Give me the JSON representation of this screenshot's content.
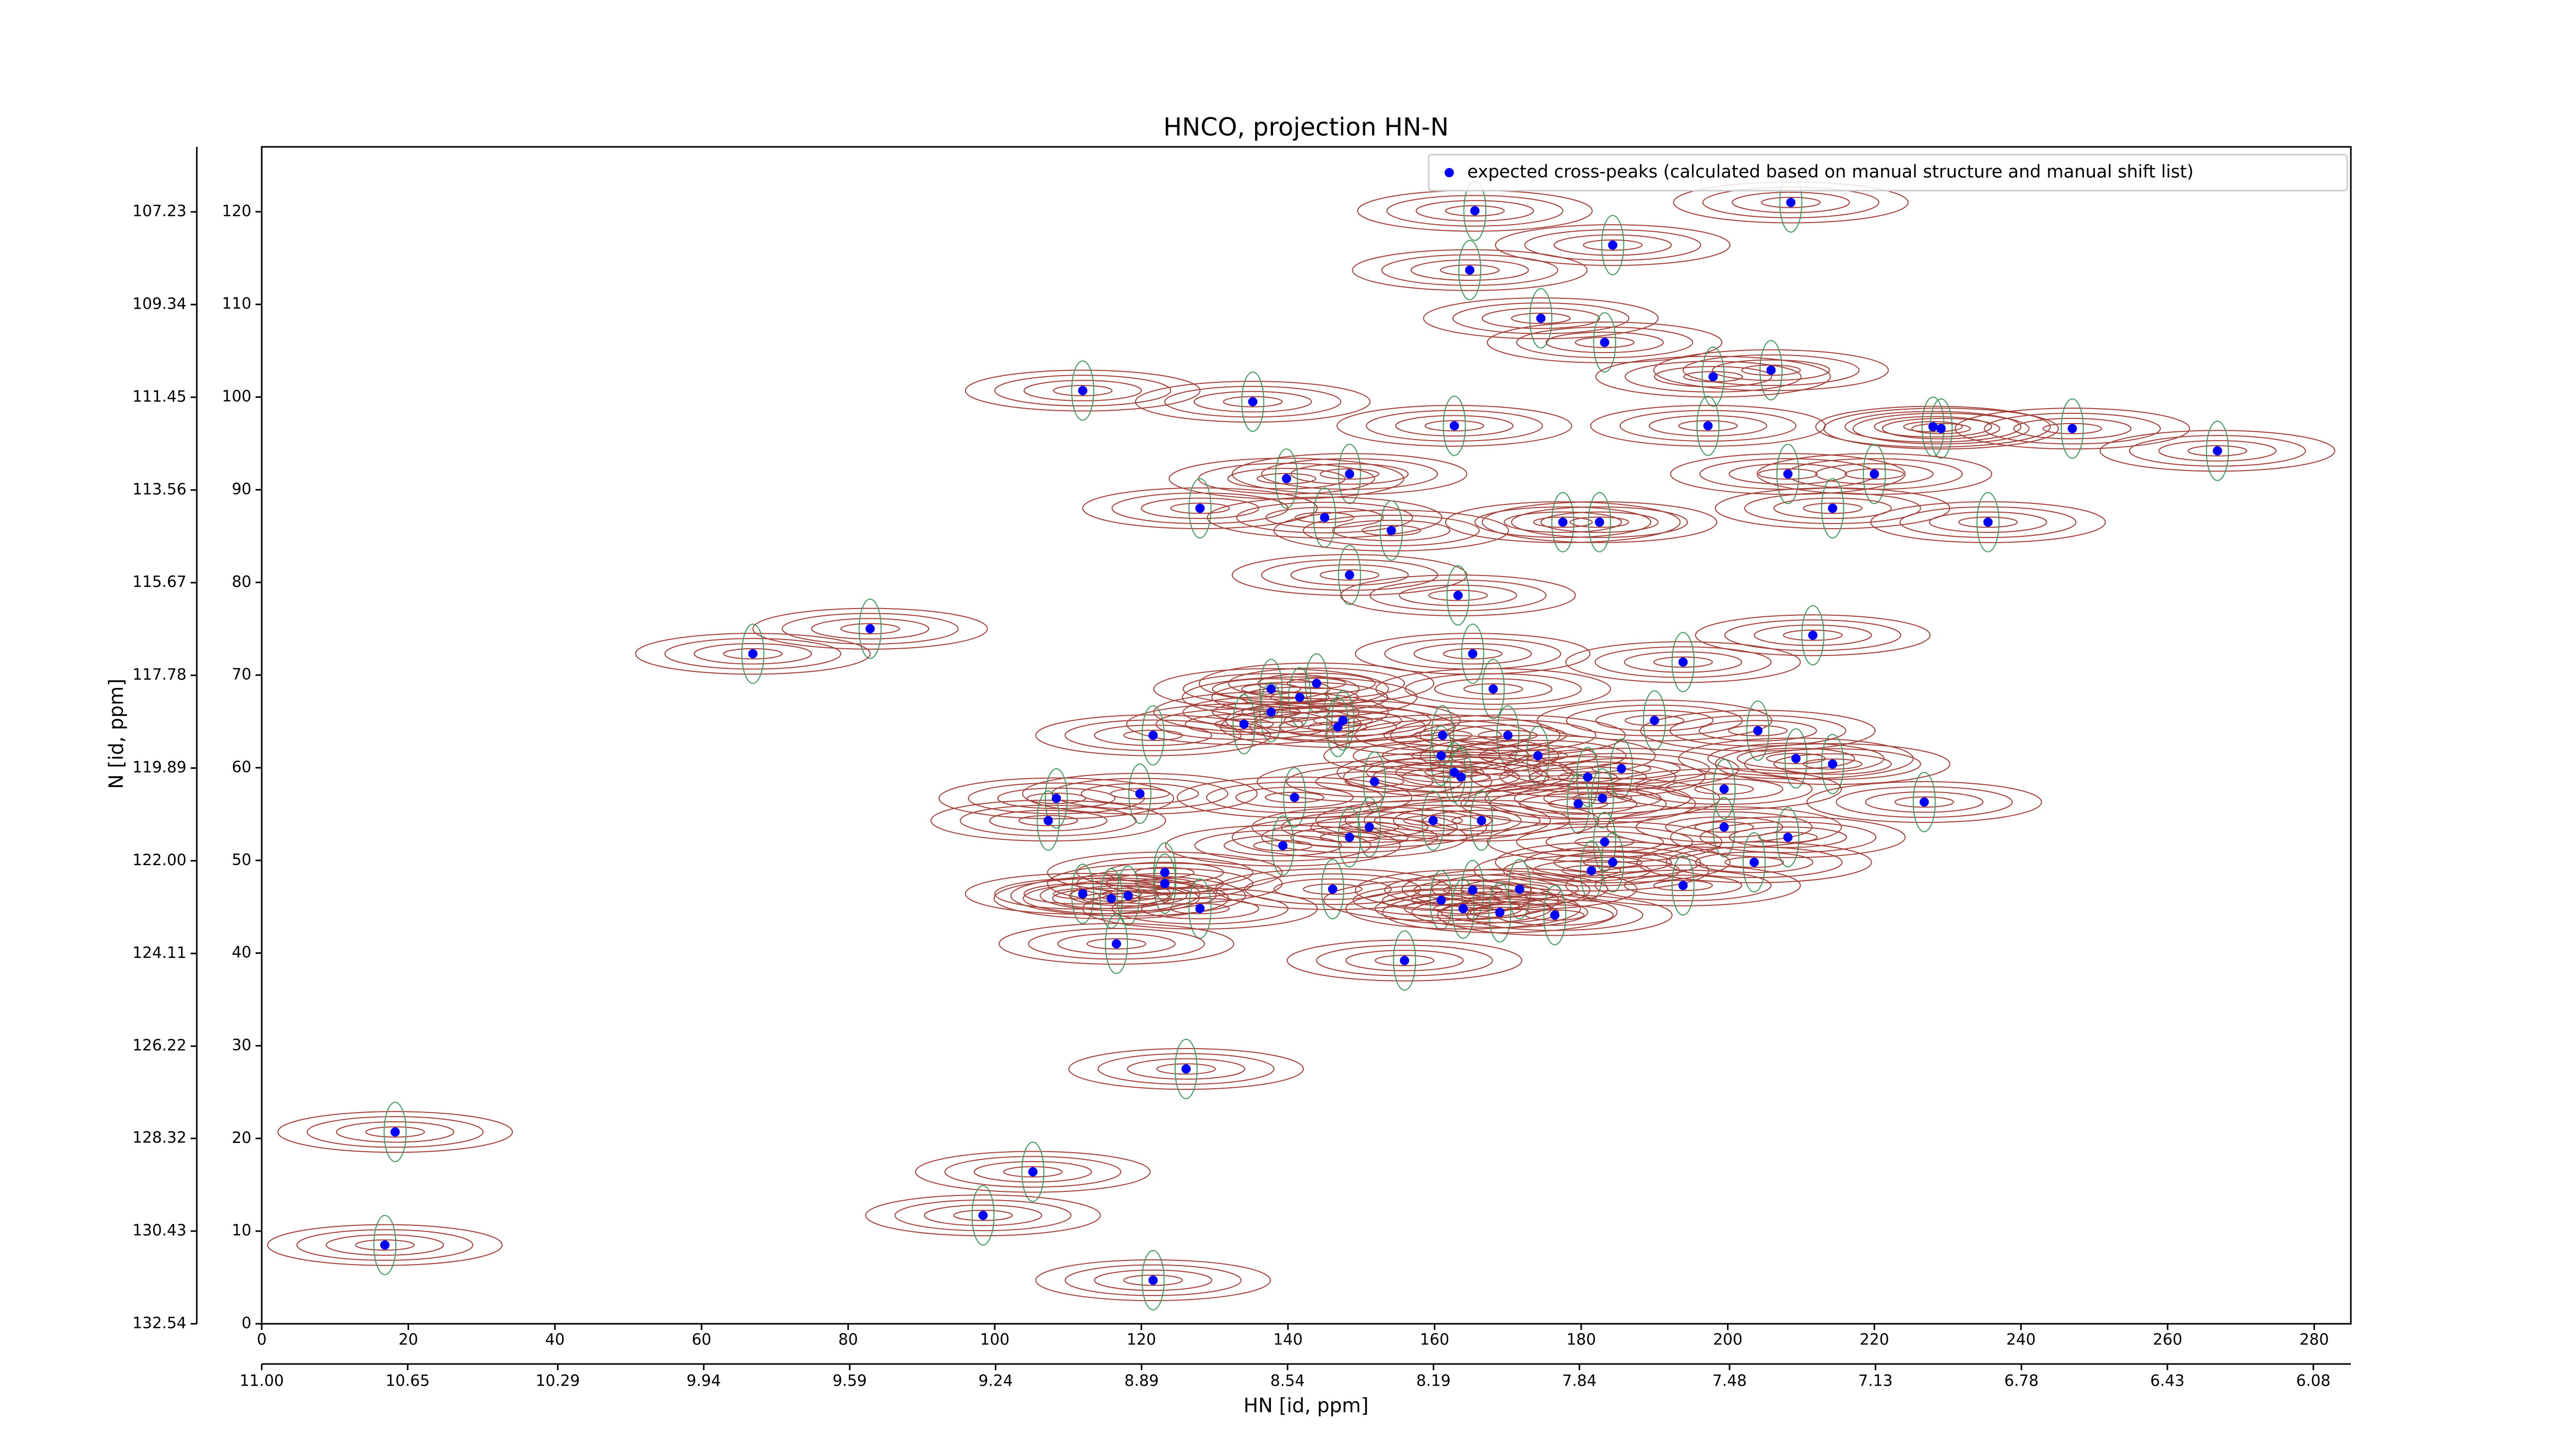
{
  "chart_data": {
    "type": "scatter",
    "title": "HNCO, projection HN-N",
    "x_label": "HN [id, ppm]",
    "y_label": "N [id, ppm]",
    "xlim": [
      0,
      285
    ],
    "ylim": [
      0,
      127
    ],
    "xticks": [
      0,
      20,
      40,
      60,
      80,
      100,
      120,
      140,
      160,
      180,
      200,
      220,
      240,
      260,
      280
    ],
    "yticks": [
      0,
      10,
      20,
      30,
      40,
      50,
      60,
      70,
      80,
      90,
      100,
      110,
      120
    ],
    "x2lim": [
      11.0,
      5.99
    ],
    "x2ticks": [
      {
        "value": 11.0,
        "label": "11.00"
      },
      10.65,
      10.29,
      9.94,
      9.59,
      9.24,
      8.89,
      8.54,
      8.19,
      7.84,
      7.48,
      7.13,
      6.78,
      6.43,
      6.08
    ],
    "y2lim": [
      132.54,
      105.75
    ],
    "y2ticks": [
      132.54,
      130.43,
      128.32,
      126.22,
      124.11,
      {
        "value": 122.0,
        "label": "122.00"
      },
      119.89,
      117.78,
      115.67,
      113.56,
      111.45,
      109.34,
      107.23
    ],
    "legend": "upper right",
    "contour_color": "#a3413a",
    "negative_contour_color": "#3f9a5c",
    "series": [
      {
        "name": "expected cross-peaks (calculated based on manual structure and manual shift list)",
        "color": "#0000ff",
        "x": [
          165.5,
          208.6,
          184.3,
          164.8,
          174.5,
          183.2,
          205.9,
          198.0,
          112.0,
          135.2,
          162.7,
          197.3,
          228.0,
          229.1,
          247.0,
          266.8,
          208.2,
          220.0,
          148.4,
          139.8,
          128.0,
          214.3,
          145.0,
          177.5,
          182.5,
          235.5,
          154.1,
          148.4,
          163.2,
          83.0,
          211.6,
          67.0,
          165.2,
          193.9,
          168.0,
          143.9,
          137.7,
          141.6,
          137.7,
          147.5,
          134.0,
          146.8,
          190.0,
          204.1,
          121.6,
          161.1,
          170.0,
          174.1,
          160.9,
          209.3,
          214.3,
          185.5,
          162.7,
          163.6,
          180.9,
          151.8,
          199.5,
          119.8,
          140.9,
          182.9,
          108.4,
          226.8,
          179.6,
          166.4,
          107.3,
          159.8,
          199.5,
          151.1,
          148.4,
          208.2,
          139.3,
          183.2,
          203.6,
          184.3,
          181.4,
          123.2,
          123.2,
          171.6,
          146.1,
          193.9,
          165.2,
          112.0,
          118.2,
          115.9,
          160.9,
          128.0,
          163.9,
          168.9,
          176.4,
          116.6,
          155.9,
          126.1,
          18.2,
          105.2,
          98.4,
          16.8,
          121.6
        ],
        "values": [
          120.1,
          121.0,
          116.4,
          113.7,
          108.5,
          105.9,
          102.9,
          102.2,
          100.7,
          99.5,
          96.9,
          96.9,
          96.8,
          96.6,
          96.6,
          94.2,
          91.7,
          91.7,
          91.7,
          91.2,
          88.0,
          88.0,
          87.0,
          86.5,
          86.5,
          86.5,
          85.6,
          80.8,
          78.6,
          75.0,
          74.3,
          72.3,
          72.3,
          71.4,
          68.5,
          69.1,
          68.5,
          67.6,
          66.0,
          65.1,
          64.7,
          64.4,
          65.1,
          64.0,
          63.5,
          63.5,
          63.5,
          61.3,
          61.3,
          61.0,
          60.4,
          59.9,
          59.5,
          59.0,
          59.0,
          58.5,
          57.7,
          57.2,
          56.8,
          56.7,
          56.7,
          56.3,
          56.1,
          54.3,
          54.3,
          54.3,
          53.6,
          53.6,
          52.5,
          52.5,
          51.6,
          52.0,
          49.8,
          49.8,
          48.9,
          48.7,
          47.5,
          46.9,
          46.9,
          47.3,
          46.8,
          46.4,
          46.2,
          45.9,
          45.7,
          44.8,
          44.8,
          44.4,
          44.1,
          41.0,
          39.2,
          27.5,
          20.7,
          16.4,
          11.7,
          8.5,
          4.7
        ]
      }
    ]
  }
}
